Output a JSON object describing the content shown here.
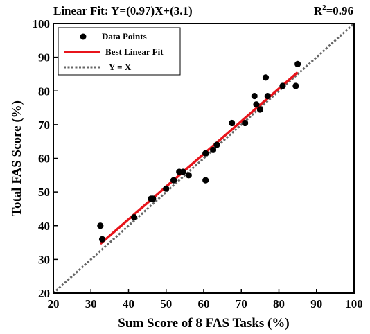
{
  "header": {
    "fit_equation": "Linear Fit: Y=(0.97)X+(3.1)",
    "r_squared": "R²=0.96"
  },
  "chart_data": {
    "type": "scatter",
    "title": "",
    "xlabel": "Sum Score of 8 FAS Tasks (%)",
    "ylabel": "Total FAS Score (%)",
    "xlim": [
      20,
      100
    ],
    "ylim": [
      20,
      100
    ],
    "xticks": [
      "20",
      "30",
      "40",
      "50",
      "60",
      "70",
      "80",
      "90",
      "100"
    ],
    "yticks": [
      "20",
      "30",
      "40",
      "50",
      "60",
      "70",
      "80",
      "90",
      "100"
    ],
    "grid": false,
    "legend_position": "top-left",
    "legend": [
      {
        "label": "Data Points",
        "style": "marker",
        "color": "#000000"
      },
      {
        "label": "Best Linear Fit",
        "style": "solid",
        "color": "#e8141b"
      },
      {
        "label": "Y = X",
        "style": "dotted",
        "color": "#666666"
      }
    ],
    "series": [
      {
        "name": "Data Points",
        "type": "scatter",
        "color": "#000000",
        "points": [
          [
            32.5,
            40.0
          ],
          [
            33.0,
            36.0
          ],
          [
            41.5,
            42.5
          ],
          [
            46.0,
            48.0
          ],
          [
            46.5,
            48.0
          ],
          [
            50.0,
            51.0
          ],
          [
            52.0,
            53.5
          ],
          [
            53.5,
            56.0
          ],
          [
            54.5,
            56.0
          ],
          [
            56.0,
            55.0
          ],
          [
            60.5,
            53.5
          ],
          [
            60.5,
            61.5
          ],
          [
            62.5,
            62.5
          ],
          [
            63.5,
            64.0
          ],
          [
            67.5,
            70.5
          ],
          [
            71.0,
            70.5
          ],
          [
            73.5,
            78.5
          ],
          [
            74.0,
            76.0
          ],
          [
            75.0,
            74.5
          ],
          [
            76.5,
            84.0
          ],
          [
            77.0,
            78.5
          ],
          [
            81.0,
            81.5
          ],
          [
            84.5,
            81.5
          ],
          [
            85.0,
            88.0
          ]
        ]
      },
      {
        "name": "Best Linear Fit",
        "type": "line",
        "color": "#e8141b",
        "slope": 0.97,
        "intercept": 3.1,
        "x_range": [
          32.5,
          85.0
        ]
      },
      {
        "name": "Y = X",
        "type": "line",
        "color": "#666666",
        "style": "dotted",
        "x_range": [
          20,
          100
        ]
      }
    ]
  }
}
